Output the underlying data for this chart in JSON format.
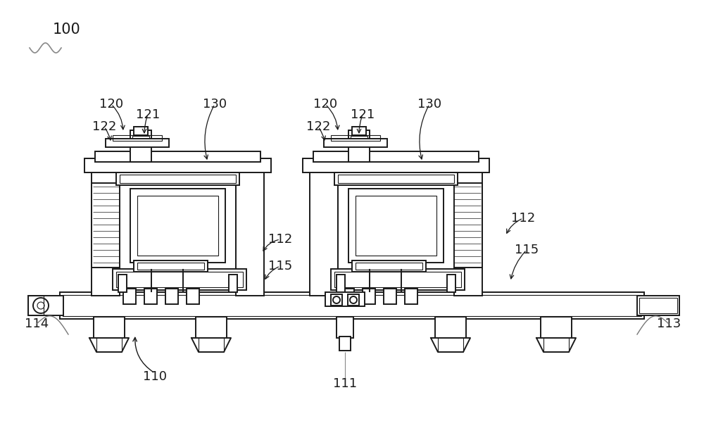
{
  "bg_color": "#ffffff",
  "line_color": "#1a1a1a",
  "label_color": "#1a1a1a",
  "font_size": 13,
  "lw": 1.4,
  "lw_thin": 0.8
}
